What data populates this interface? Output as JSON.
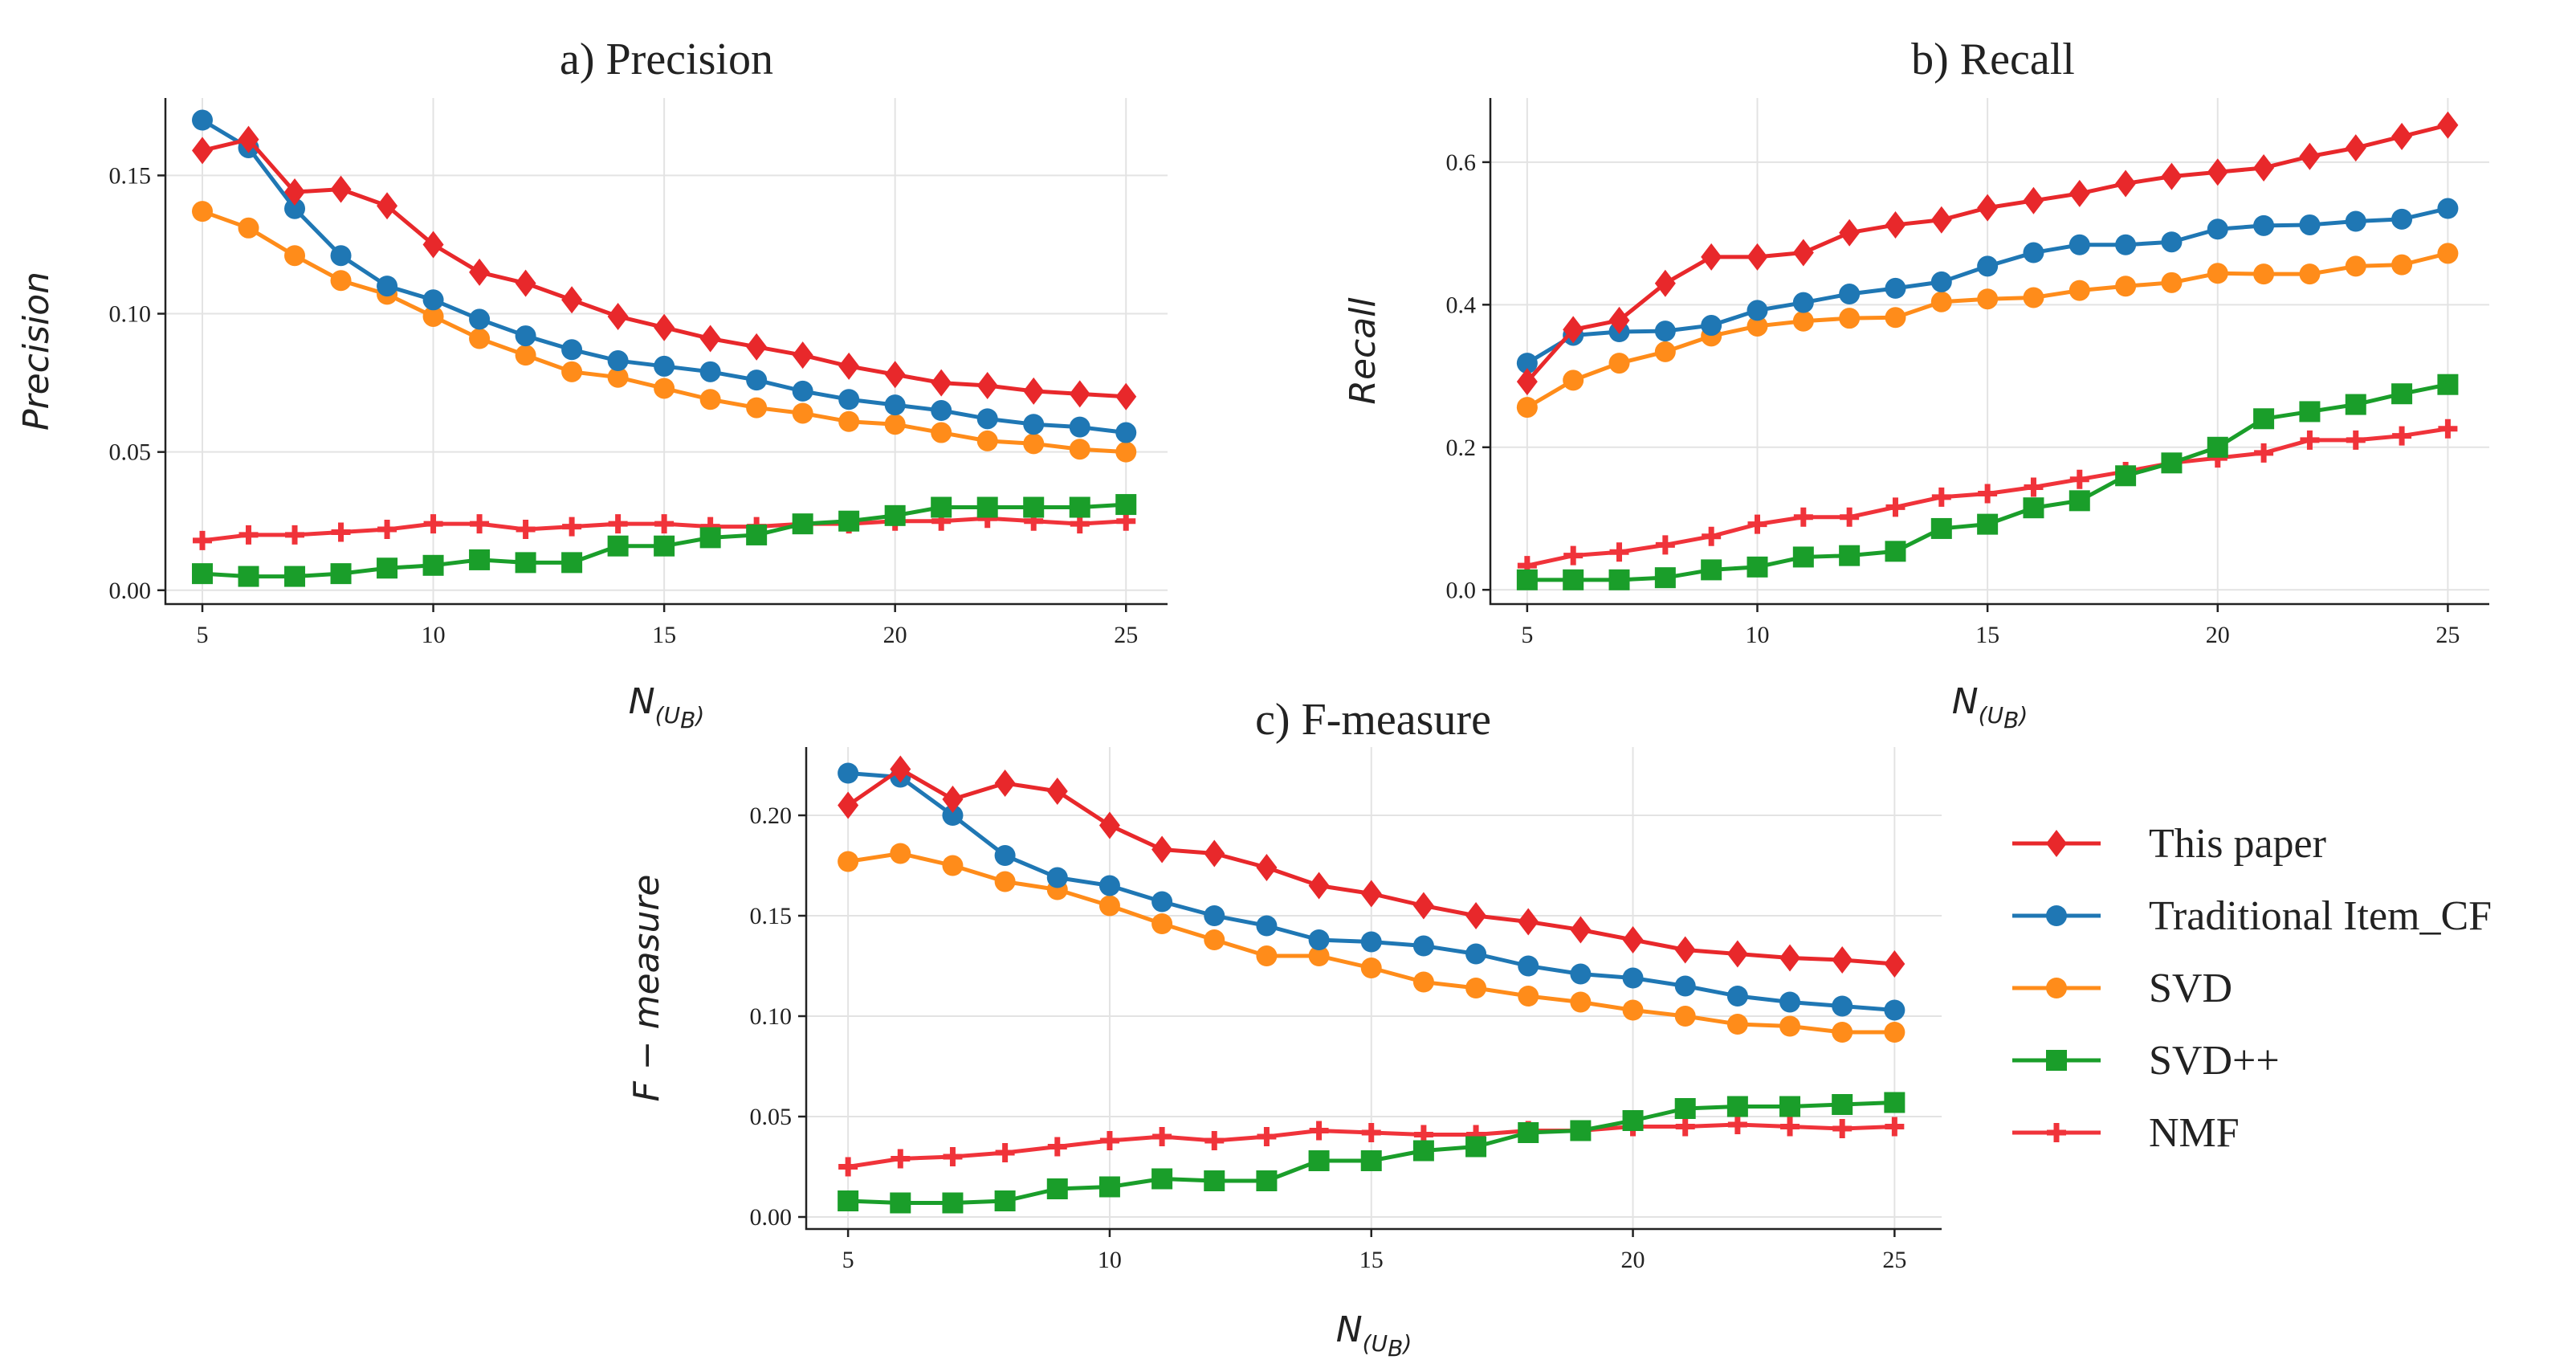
{
  "chart_data": [
    {
      "type": "line",
      "title": "a) Precision",
      "ylabel": "Precision",
      "xlabel": "N",
      "xlabel_sub": "(U",
      "xlabel_subsub": "B",
      "xlabel_close": ")",
      "x": [
        5,
        6,
        7,
        8,
        9,
        10,
        11,
        12,
        13,
        14,
        15,
        16,
        17,
        18,
        19,
        20,
        21,
        22,
        23,
        24,
        25
      ],
      "xlim": [
        4.2,
        25.9
      ],
      "ylim": [
        -0.005,
        0.178
      ],
      "xticks": [
        5,
        10,
        15,
        20,
        25
      ],
      "xtick_labels": [
        "5",
        "10",
        "15",
        "20",
        "25"
      ],
      "yticks": [
        0.0,
        0.05,
        0.1,
        0.15
      ],
      "ytick_labels": [
        "0.00",
        "0.05",
        "0.10",
        "0.15"
      ],
      "series": [
        {
          "name": "This paper",
          "values": [
            0.159,
            0.163,
            0.144,
            0.145,
            0.139,
            0.125,
            0.115,
            0.111,
            0.105,
            0.099,
            0.095,
            0.091,
            0.088,
            0.085,
            0.081,
            0.078,
            0.075,
            0.074,
            0.072,
            0.071,
            0.07
          ]
        },
        {
          "name": "Traditional Item_CF",
          "values": [
            0.17,
            0.16,
            0.138,
            0.121,
            0.11,
            0.105,
            0.098,
            0.092,
            0.087,
            0.083,
            0.081,
            0.079,
            0.076,
            0.072,
            0.069,
            0.067,
            0.065,
            0.062,
            0.06,
            0.059,
            0.057
          ]
        },
        {
          "name": "SVD",
          "values": [
            0.137,
            0.131,
            0.121,
            0.112,
            0.107,
            0.099,
            0.091,
            0.085,
            0.079,
            0.077,
            0.073,
            0.069,
            0.066,
            0.064,
            0.061,
            0.06,
            0.057,
            0.054,
            0.053,
            0.051,
            0.05
          ]
        },
        {
          "name": "SVD++",
          "values": [
            0.006,
            0.005,
            0.005,
            0.006,
            0.008,
            0.009,
            0.011,
            0.01,
            0.01,
            0.016,
            0.016,
            0.019,
            0.02,
            0.024,
            0.025,
            0.027,
            0.03,
            0.03,
            0.03,
            0.03,
            0.031
          ]
        },
        {
          "name": "NMF",
          "values": [
            0.018,
            0.02,
            0.02,
            0.021,
            0.022,
            0.024,
            0.024,
            0.022,
            0.023,
            0.024,
            0.024,
            0.023,
            0.023,
            0.024,
            0.024,
            0.025,
            0.025,
            0.026,
            0.025,
            0.024,
            0.025
          ]
        }
      ]
    },
    {
      "type": "line",
      "title": "b) Recall",
      "ylabel": "Recall",
      "xlabel": "N",
      "xlabel_sub": "(U",
      "xlabel_subsub": "B",
      "xlabel_close": ")",
      "x": [
        5,
        6,
        7,
        8,
        9,
        10,
        11,
        12,
        13,
        14,
        15,
        16,
        17,
        18,
        19,
        20,
        21,
        22,
        23,
        24,
        25
      ],
      "xlim": [
        4.2,
        25.9
      ],
      "ylim": [
        -0.02,
        0.69
      ],
      "xticks": [
        5,
        10,
        15,
        20,
        25
      ],
      "xtick_labels": [
        "5",
        "10",
        "15",
        "20",
        "25"
      ],
      "yticks": [
        0.0,
        0.2,
        0.4,
        0.6
      ],
      "ytick_labels": [
        "0.0",
        "0.2",
        "0.4",
        "0.6"
      ],
      "series": [
        {
          "name": "This paper",
          "values": [
            0.292,
            0.365,
            0.378,
            0.43,
            0.467,
            0.467,
            0.473,
            0.501,
            0.512,
            0.519,
            0.536,
            0.546,
            0.556,
            0.57,
            0.58,
            0.586,
            0.592,
            0.608,
            0.62,
            0.636,
            0.652
          ]
        },
        {
          "name": "Traditional Item_CF",
          "values": [
            0.318,
            0.357,
            0.362,
            0.363,
            0.371,
            0.392,
            0.403,
            0.415,
            0.423,
            0.432,
            0.454,
            0.473,
            0.484,
            0.484,
            0.488,
            0.506,
            0.511,
            0.512,
            0.517,
            0.52,
            0.535
          ]
        },
        {
          "name": "SVD",
          "values": [
            0.256,
            0.294,
            0.318,
            0.334,
            0.356,
            0.37,
            0.377,
            0.381,
            0.382,
            0.404,
            0.408,
            0.41,
            0.42,
            0.426,
            0.431,
            0.444,
            0.443,
            0.443,
            0.454,
            0.456,
            0.472
          ]
        },
        {
          "name": "SVD++",
          "values": [
            0.014,
            0.014,
            0.014,
            0.017,
            0.028,
            0.032,
            0.046,
            0.048,
            0.054,
            0.086,
            0.092,
            0.115,
            0.125,
            0.16,
            0.178,
            0.2,
            0.24,
            0.25,
            0.26,
            0.275,
            0.288
          ]
        },
        {
          "name": "NMF",
          "values": [
            0.034,
            0.048,
            0.053,
            0.063,
            0.075,
            0.092,
            0.102,
            0.102,
            0.116,
            0.13,
            0.135,
            0.144,
            0.155,
            0.166,
            0.178,
            0.185,
            0.192,
            0.21,
            0.21,
            0.216,
            0.226
          ]
        }
      ]
    },
    {
      "type": "line",
      "title": "c) F-measure",
      "ylabel": "F − measure",
      "xlabel": "N",
      "xlabel_sub": "(U",
      "xlabel_subsub": "B",
      "xlabel_close": ")",
      "x": [
        5,
        6,
        7,
        8,
        9,
        10,
        11,
        12,
        13,
        14,
        15,
        16,
        17,
        18,
        19,
        20,
        21,
        22,
        23,
        24,
        25
      ],
      "xlim": [
        4.2,
        25.9
      ],
      "ylim": [
        -0.006,
        0.234
      ],
      "xticks": [
        5,
        10,
        15,
        20,
        25
      ],
      "xtick_labels": [
        "5",
        "10",
        "15",
        "20",
        "25"
      ],
      "yticks": [
        0.0,
        0.05,
        0.1,
        0.15,
        0.2
      ],
      "ytick_labels": [
        "0.00",
        "0.05",
        "0.10",
        "0.15",
        "0.20"
      ],
      "series": [
        {
          "name": "This paper",
          "values": [
            0.205,
            0.223,
            0.208,
            0.216,
            0.212,
            0.195,
            0.183,
            0.181,
            0.174,
            0.165,
            0.161,
            0.155,
            0.15,
            0.147,
            0.143,
            0.138,
            0.133,
            0.131,
            0.129,
            0.128,
            0.126
          ]
        },
        {
          "name": "Traditional Item_CF",
          "values": [
            0.221,
            0.219,
            0.2,
            0.18,
            0.169,
            0.165,
            0.157,
            0.15,
            0.145,
            0.138,
            0.137,
            0.135,
            0.131,
            0.125,
            0.121,
            0.119,
            0.115,
            0.11,
            0.107,
            0.105,
            0.103
          ]
        },
        {
          "name": "SVD",
          "values": [
            0.177,
            0.181,
            0.175,
            0.167,
            0.163,
            0.155,
            0.146,
            0.138,
            0.13,
            0.13,
            0.124,
            0.117,
            0.114,
            0.11,
            0.107,
            0.103,
            0.1,
            0.096,
            0.095,
            0.092,
            0.092
          ]
        },
        {
          "name": "SVD++",
          "values": [
            0.008,
            0.007,
            0.007,
            0.008,
            0.014,
            0.015,
            0.019,
            0.018,
            0.018,
            0.028,
            0.028,
            0.033,
            0.035,
            0.042,
            0.043,
            0.048,
            0.054,
            0.055,
            0.055,
            0.056,
            0.057
          ]
        },
        {
          "name": "NMF",
          "values": [
            0.025,
            0.029,
            0.03,
            0.032,
            0.035,
            0.038,
            0.04,
            0.038,
            0.04,
            0.043,
            0.042,
            0.041,
            0.041,
            0.043,
            0.043,
            0.045,
            0.045,
            0.046,
            0.045,
            0.044,
            0.045
          ]
        }
      ]
    }
  ],
  "legend": {
    "placement": "right of c) F-measure",
    "entries": [
      {
        "name": "This paper",
        "color": "#e8282b",
        "marker": "diamond"
      },
      {
        "name": "Traditional Item_CF",
        "color": "#1f77b4",
        "marker": "circle"
      },
      {
        "name": "SVD",
        "color": "#ff8c1a",
        "marker": "circle"
      },
      {
        "name": "SVD++",
        "color": "#1a9e2a",
        "marker": "square"
      },
      {
        "name": "NMF",
        "color": "#f0333a",
        "marker": "plus"
      }
    ]
  }
}
